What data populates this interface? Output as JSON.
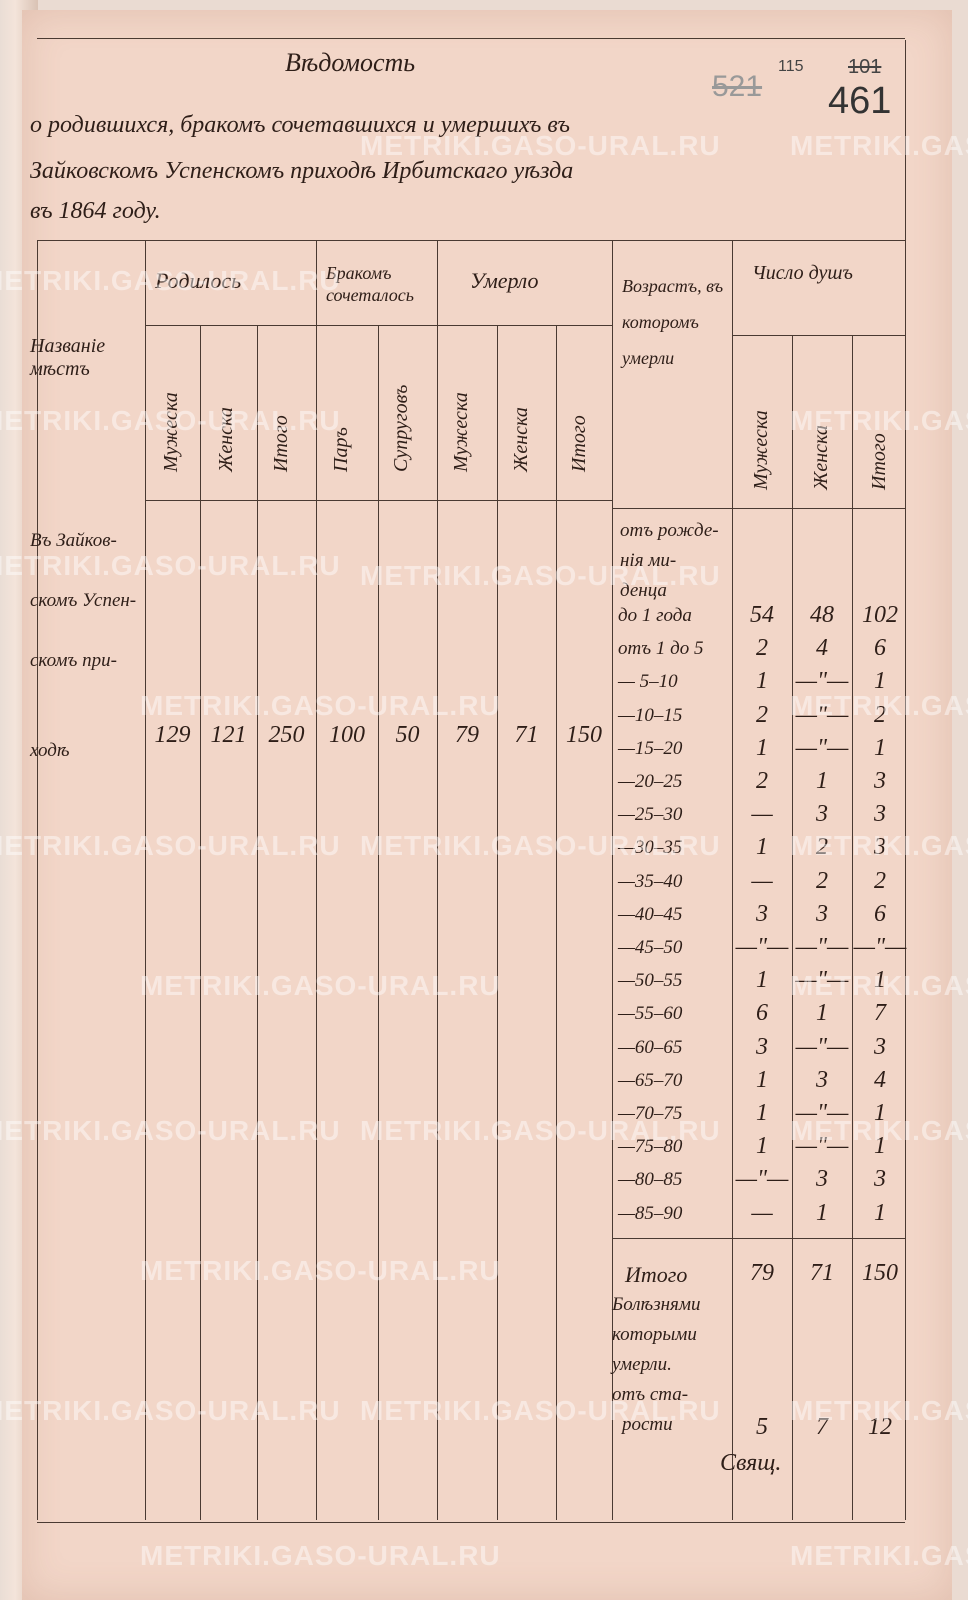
{
  "document": {
    "title": "Вѣдомость",
    "heading_lines": [
      "о родившихся, бракомъ сочетавшихся и умершихъ въ",
      "Зайковскомъ Успенскомъ приходѣ Ирбитскаго уѣзда",
      "въ 1864 году."
    ],
    "archive_numbers": {
      "crossed_1": "521",
      "small": "115",
      "crossed_2": "101",
      "current": "461"
    },
    "watermark": "METRIKI.GASO-URAL.RU"
  },
  "table": {
    "headers": {
      "place": "Названіе мѣстъ",
      "born": "Родилось",
      "married": "Бракомъ сочеталось",
      "died": "Умерло",
      "age": "Возрастъ, въ которомъ умерли",
      "souls": "Число душъ"
    },
    "subheaders": {
      "born": [
        "Мужеска",
        "Женска",
        "Итого"
      ],
      "married": [
        "Паръ",
        "Супруговъ"
      ],
      "died": [
        "Мужеска",
        "Женска",
        "Итого"
      ],
      "souls": [
        "Мужеска",
        "Женска",
        "Итого"
      ]
    },
    "place_lines": [
      "Въ Зайков-",
      "скомъ Успен-",
      "скомъ при-",
      "ходѣ"
    ],
    "main_values": [
      "129",
      "121",
      "250",
      "100",
      "50",
      "79",
      "71",
      "150"
    ],
    "age_intro": [
      "отъ рожде-",
      "нія ми-",
      "денца"
    ],
    "age_rows": [
      {
        "age": "до 1 года",
        "m": "54",
        "f": "48",
        "t": "102"
      },
      {
        "age": "отъ 1 до 5",
        "m": "2",
        "f": "4",
        "t": "6"
      },
      {
        "age": "— 5–10",
        "m": "1",
        "f": "—\"—",
        "t": "1"
      },
      {
        "age": "—10–15",
        "m": "2",
        "f": "—\"—",
        "t": "2"
      },
      {
        "age": "—15–20",
        "m": "1",
        "f": "—\"—",
        "t": "1"
      },
      {
        "age": "—20–25",
        "m": "2",
        "f": "1",
        "t": "3"
      },
      {
        "age": "—25–30",
        "m": "—",
        "f": "3",
        "t": "3"
      },
      {
        "age": "—30–35",
        "m": "1",
        "f": "2",
        "t": "3"
      },
      {
        "age": "—35–40",
        "m": "—",
        "f": "2",
        "t": "2"
      },
      {
        "age": "—40–45",
        "m": "3",
        "f": "3",
        "t": "6"
      },
      {
        "age": "—45–50",
        "m": "—\"—",
        "f": "—\"—",
        "t": "—\"—"
      },
      {
        "age": "—50–55",
        "m": "1",
        "f": "—\"—",
        "t": "1"
      },
      {
        "age": "—55–60",
        "m": "6",
        "f": "1",
        "t": "7"
      },
      {
        "age": "—60–65",
        "m": "3",
        "f": "—\"—",
        "t": "3"
      },
      {
        "age": "—65–70",
        "m": "1",
        "f": "3",
        "t": "4"
      },
      {
        "age": "—70–75",
        "m": "1",
        "f": "—\"—",
        "t": "1"
      },
      {
        "age": "—75–80",
        "m": "1",
        "f": "—\"—",
        "t": "1"
      },
      {
        "age": "—80–85",
        "m": "—\"—",
        "f": "3",
        "t": "3"
      },
      {
        "age": "—85–90",
        "m": "—",
        "f": "1",
        "t": "1"
      }
    ],
    "total": {
      "label": "Итого",
      "m": "79",
      "f": "71",
      "t": "150"
    },
    "disease_label": [
      "Болѣзнями",
      "которыми",
      "умерли.",
      "отъ ста-",
      "рости"
    ],
    "old_age": {
      "m": "5",
      "f": "7",
      "t": "12"
    },
    "signature": "Свящ."
  }
}
